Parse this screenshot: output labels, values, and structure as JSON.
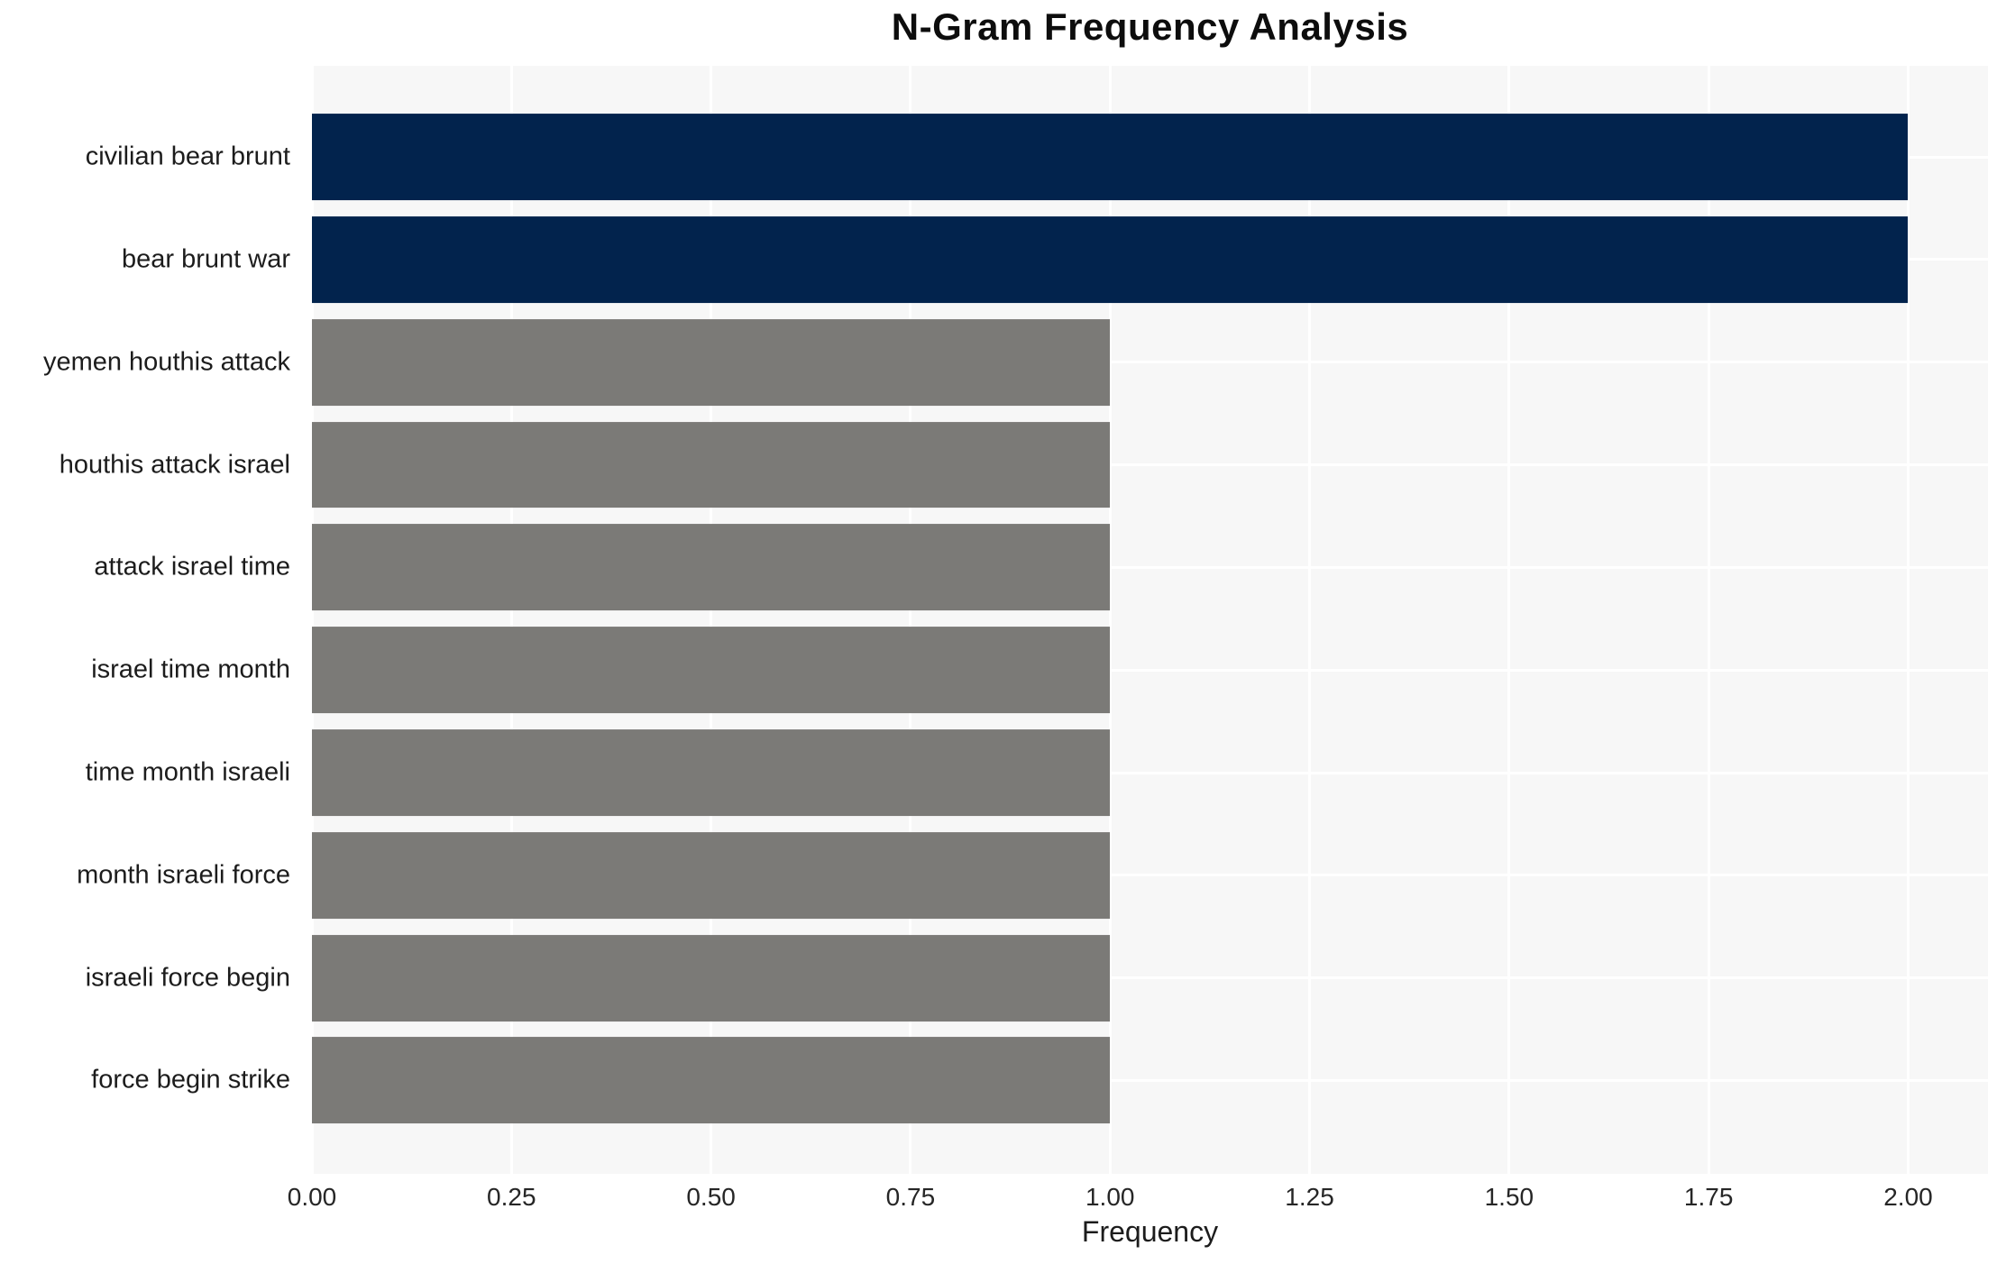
{
  "title": "N-Gram Frequency Analysis",
  "chart_data": {
    "type": "bar",
    "orientation": "horizontal",
    "title": "N-Gram Frequency Analysis",
    "xlabel": "Frequency",
    "ylabel": "",
    "categories": [
      "civilian bear brunt",
      "bear brunt war",
      "yemen houthis attack",
      "houthis attack israel",
      "attack israel time",
      "israel time month",
      "time month israeli",
      "month israeli force",
      "israeli force begin",
      "force begin strike"
    ],
    "values": [
      2,
      2,
      1,
      1,
      1,
      1,
      1,
      1,
      1,
      1
    ],
    "bar_colors": [
      "#02234d",
      "#02234d",
      "#7b7a77",
      "#7b7a77",
      "#7b7a77",
      "#7b7a77",
      "#7b7a77",
      "#7b7a77",
      "#7b7a77",
      "#7b7a77"
    ],
    "xlim": [
      0,
      2.1
    ],
    "xticks": [
      0,
      0.25,
      0.5,
      0.75,
      1.0,
      1.25,
      1.5,
      1.75,
      2.0
    ],
    "xtick_labels": [
      "0.00",
      "0.25",
      "0.50",
      "0.75",
      "1.00",
      "1.25",
      "1.50",
      "1.75",
      "2.00"
    ],
    "grid": true,
    "legend": false,
    "colors": {
      "bar_highlight": "#02234d",
      "bar_default": "#7b7a77",
      "plot_background": "#f7f7f7",
      "gridline": "#ffffff",
      "text": "#1c1c1c"
    }
  }
}
